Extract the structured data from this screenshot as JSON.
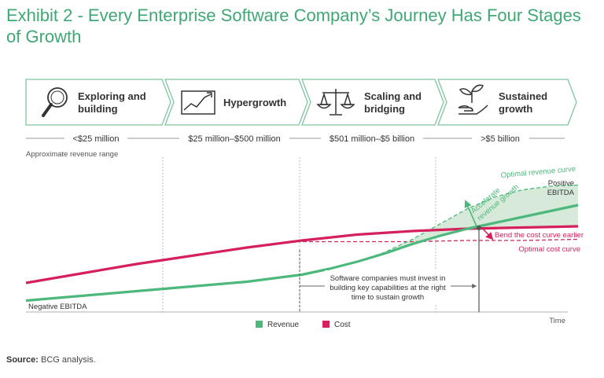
{
  "title": "Exhibit 2 - Every Enterprise Software Company’s Journey Has Four Stages of Growth",
  "stages": [
    {
      "label_line1": "Exploring and",
      "label_line2": "building",
      "icon": "magnifier-icon",
      "range": "<$25 million"
    },
    {
      "label_line1": "Hypergrowth",
      "label_line2": "",
      "icon": "rising-chart-icon",
      "range": "$25 million–$500 million"
    },
    {
      "label_line1": "Scaling and",
      "label_line2": "bridging",
      "icon": "balance-scale-icon",
      "range": "$501 million–$5 billion"
    },
    {
      "label_line1": "Sustained",
      "label_line2": "growth",
      "icon": "plant-in-hand-icon",
      "range": ">$5 billion"
    }
  ],
  "range_caption": "Approximate revenue range",
  "annotations": {
    "optimal_revenue": "Optimal revenue curve",
    "positive_ebitda_1": "Positive",
    "positive_ebitda_2": "EBITDA",
    "accelerate_1": "Accelerate",
    "accelerate_2": "revenue growth",
    "bend_cost": "Bend the cost curve earlier",
    "optimal_cost": "Optimal cost curve",
    "invest_1": "Software companies must invest in",
    "invest_2": "building key capabilities at the right",
    "invest_3": "time to sustain growth",
    "negative_ebitda": "Negative EBITDA",
    "time": "Time"
  },
  "legend": {
    "revenue": "Revenue",
    "cost": "Cost"
  },
  "source_label": "Source:",
  "source_text": "BCG analysis.",
  "colors": {
    "title": "#3fa874",
    "revenue": "#4cb87c",
    "cost": "#d6205c",
    "fill": "#d7ead9",
    "stage_border": "#7fc59d",
    "text": "#333333",
    "grid": "#9a9a9a"
  },
  "chart_data": {
    "type": "line",
    "xlabel": "Time",
    "ylabel": "",
    "series": [
      {
        "name": "Revenue",
        "style": "solid",
        "x": [
          0,
          10,
          20,
          30,
          40,
          50,
          55,
          60,
          65,
          70,
          75,
          80,
          85,
          90,
          95,
          100
        ],
        "y": [
          5,
          9,
          13,
          17,
          21,
          27,
          32,
          38,
          45,
          53,
          60,
          66,
          71,
          76,
          81,
          86
        ]
      },
      {
        "name": "Cost",
        "style": "solid",
        "x": [
          0,
          10,
          20,
          30,
          40,
          50,
          60,
          70,
          80,
          90,
          100
        ],
        "y": [
          20,
          28,
          36,
          43,
          50,
          56,
          61,
          64,
          66,
          67,
          68
        ]
      },
      {
        "name": "Optimal revenue curve",
        "style": "dashed",
        "x": [
          60,
          65,
          70,
          75,
          80,
          85,
          90,
          95,
          100
        ],
        "y": [
          38,
          46,
          57,
          70,
          83,
          93,
          99,
          102,
          103
        ]
      },
      {
        "name": "Optimal cost curve",
        "style": "dashed",
        "x": [
          49,
          60,
          70,
          80,
          90,
          100
        ],
        "y": [
          55,
          55,
          55,
          56,
          56,
          57
        ]
      }
    ]
  }
}
